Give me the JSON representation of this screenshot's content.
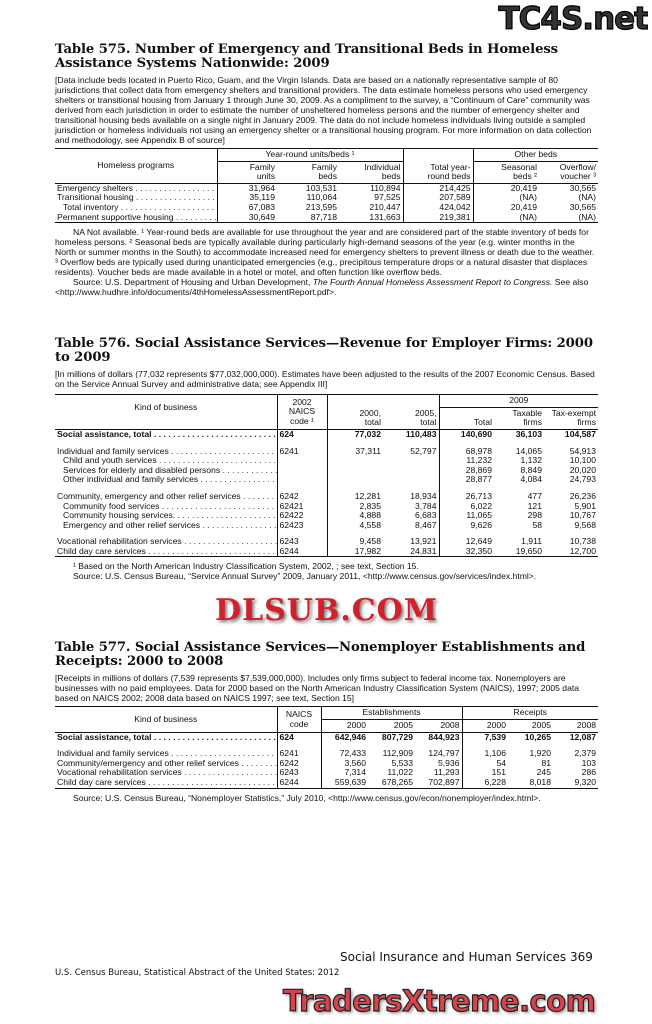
{
  "t575": {
    "title": "Table 575. Number of Emergency and Transitional Beds in Homeless Assistance Systems Nationwide: 2009",
    "note": "[Data include beds located in Puerto Rico, Guam, and the Virgin Islands. Data are based on a nationally representative sample of 80 jurisdictions that collect data from emergency shelters and transitional providers. The data estimate homeless persons who used emergency shelters or transitional housing from January 1 through June 30, 2009. As a compliment to the survey, a “Continuum of Care” community was derived from each jurisdiction in order to estimate the number of unsheltered homeless persons and the number of emergency shelter and transitional housing beds available on a single night in January 2009. The data do not include homeless individuals living outside a sampled jurisdiction or homeless individuals not using an emergency shelter or a transitional housing program. For more information on data collection and methodology, see Appendix B of source]",
    "head": {
      "stub": "Homeless programs",
      "group1": "Year-round units/beds ¹",
      "total": "Total year-round beds",
      "group2": "Other beds",
      "cols": [
        "Family units",
        "Family beds",
        "Individual beds",
        "Seasonal beds ²",
        "Overflow/ voucher ³"
      ]
    },
    "rows": [
      {
        "label": "Emergency shelters",
        "v": [
          "31,964",
          "103,531",
          "110,894",
          "214,425",
          "20,419",
          "30,565"
        ]
      },
      {
        "label": "Transitional housing",
        "v": [
          "35,119",
          "110,064",
          "97,525",
          "207,589",
          "(NA)",
          "(NA)"
        ]
      },
      {
        "label": " Total inventory",
        "v": [
          "67,083",
          "213,595",
          "210,447",
          "424,042",
          "20,419",
          "30,565"
        ]
      },
      {
        "label": "Permanent supportive housing",
        "v": [
          "30,649",
          "87,718",
          "131,663",
          "219,381",
          "(NA)",
          "(NA)"
        ]
      }
    ],
    "footnote": "NA Not available. ¹ Year-round beds are available for use throughout the year and are considered part of the stable inventory of beds for homeless persons. ² Seasonal beds are typically available during particularly high-demand seasons of the year (e.g. winter months in the North or summer months in the South) to accommodate increased need for emergency shelters to prevent illness or death due to the weather. ³ Overflow beds are typically used during unanticipated emergencies (e.g., precipitous temperature drops or a natural disaster that displaces residents). Voucher beds are made available in a hotel or motel, and often function like overflow beds.",
    "source_pre": "Source: U.S. Department of Housing and Urban Development, ",
    "source_ital": "The Fourth Annual Homeless Assessment Report to Congress.",
    "source_post": " See also <http://www.hudhre.info/documents/4thHomelessAssessmentReport.pdf>."
  },
  "t576": {
    "title": "Table 576. Social Assistance Services—Revenue for Employer Firms: 2000 to 2009",
    "note": "[In millions of dollars (77,032 represents $77,032,000,000). Estimates have been adjusted to the results of the 2007 Economic Census. Based on the Service Annual Survey and administrative data; see Appendix III]",
    "head": {
      "stub": "Kind of business",
      "naics": "2002 NAICS code ¹",
      "c2000": "2000, total",
      "c2005": "2005, total",
      "year": "2009",
      "cols": [
        "Total",
        "Taxable firms",
        "Tax-exempt firms"
      ]
    },
    "rows": [
      {
        "label": "Social assistance, total",
        "code": "624",
        "v": [
          "77,032",
          "110,483",
          "140,690",
          "36,103",
          "104,587"
        ],
        "bold": true,
        "gap": true
      },
      {
        "label": "Individual and family services",
        "code": "6241",
        "v": [
          "37,311",
          "52,797",
          "68,978",
          "14,065",
          "54,913"
        ]
      },
      {
        "label": " Child and youth services",
        "code": "",
        "v": [
          "",
          "",
          "11,232",
          "1,132",
          "10,100"
        ]
      },
      {
        "label": " Services for elderly and disabled persons",
        "code": "",
        "v": [
          "",
          "",
          "28,869",
          "8,849",
          "20,020"
        ]
      },
      {
        "label": " Other individual and family services",
        "code": "",
        "v": [
          "",
          "",
          "28,877",
          "4,084",
          "24,793"
        ],
        "gap": true
      },
      {
        "label": "Community, emergency and other relief services",
        "code": "6242",
        "v": [
          "12,281",
          "18,934",
          "26,713",
          "477",
          "26,236"
        ]
      },
      {
        "label": " Community food services",
        "code": "62421",
        "v": [
          "2,835",
          "3,784",
          "6,022",
          "121",
          "5,901"
        ]
      },
      {
        "label": " Community housing services.",
        "code": "62422",
        "v": [
          "4,888",
          "6,683",
          "11,065",
          "298",
          "10,767"
        ]
      },
      {
        "label": " Emergency and other relief services",
        "code": "62423",
        "v": [
          "4,558",
          "8,467",
          "9,626",
          "58",
          "9,568"
        ],
        "gap": true
      },
      {
        "label": "Vocational rehabilitation services",
        "code": "6243",
        "v": [
          "9,458",
          "13,921",
          "12,649",
          "1,911",
          "10,738"
        ]
      },
      {
        "label": "Child day care services",
        "code": "6244",
        "v": [
          "17,982",
          "24,831",
          "32,350",
          "19,650",
          "12,700"
        ]
      }
    ],
    "footnote": "¹ Based on the North American Industry Classification System, 2002, ; see text, Section 15.",
    "source": "Source: U.S. Census Bureau, “Service Annual Survey” 2009, January 2011, <http://www.census.gov/services/index.html>."
  },
  "t577": {
    "title": "Table 577. Social Assistance Services—Nonemployer Establishments and Receipts: 2000 to 2008",
    "note": "[Receipts in millions of dollars (7,539 represents $7,539,000,000). Includes only firms subject to federal income tax. Nonemployers are businesses with no paid employees. Data for 2000 based on the North American Industry Classification System (NAICS), 1997; 2005 data based on NAICS 2002; 2008 data based on NAICS 1997; see text, Section 15]",
    "head": {
      "stub": "Kind of business",
      "naics": "NAICS code",
      "group1": "Establishments",
      "group2": "Receipts",
      "cols": [
        "2000",
        "2005",
        "2008",
        "2000",
        "2005",
        "2008"
      ]
    },
    "rows": [
      {
        "label": "Social assistance, total",
        "code": "624",
        "v": [
          "642,946",
          "807,729",
          "844,923",
          "7,539",
          "10,265",
          "12,087"
        ],
        "bold": true,
        "gap": true
      },
      {
        "label": "Individual and family services",
        "code": "6241",
        "v": [
          "72,433",
          "112,909",
          "124,797",
          "1,106",
          "1,920",
          "2,379"
        ]
      },
      {
        "label": "Community/emergency and other relief services",
        "code": "6242",
        "v": [
          "3,560",
          "5,533",
          "5,936",
          "54",
          "81",
          "103"
        ]
      },
      {
        "label": "Vocational rehabilitation services",
        "code": "6243",
        "v": [
          "7,314",
          "11,022",
          "11,293",
          "151",
          "245",
          "286"
        ]
      },
      {
        "label": "Child day care services",
        "code": "6244",
        "v": [
          "559,639",
          "678,265",
          "702,897",
          "6,228",
          "8,018",
          "9,320"
        ]
      }
    ],
    "source": "Source: U.S. Census Bureau, “Nonemployer Statistics,” July 2010, <http://www.census.gov/econ/nonemployer/index.html>."
  },
  "footer": {
    "running_head": "Social Insurance and Human Services  369",
    "left": "U.S. Census Bureau, Statistical Abstract of the United States: 2012"
  },
  "watermarks": {
    "top": "TC4S.net",
    "middle": "DLSUB.COM",
    "bottom": "TradersXtreme.com"
  }
}
